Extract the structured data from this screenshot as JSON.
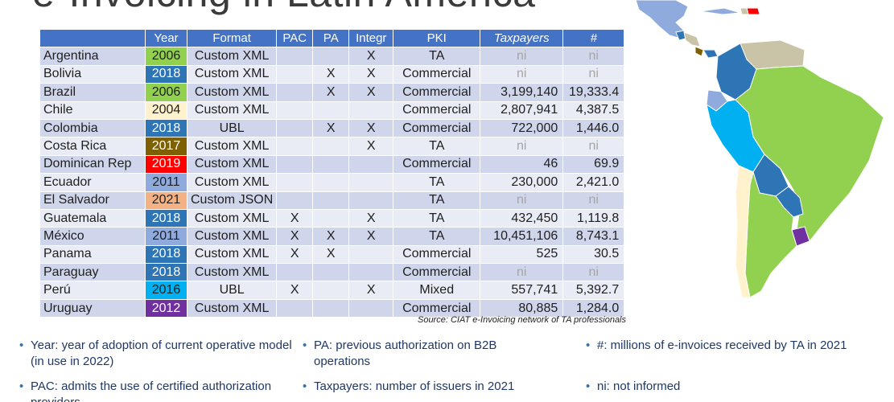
{
  "title": "e-Invoicing in Latin America",
  "table": {
    "headers": {
      "country": "",
      "year": "Year",
      "format": "Format",
      "pac": "PAC",
      "pa": "PA",
      "integr": "Integr",
      "pki": "PKI",
      "taxpayers": "Taxpayers",
      "count": "#"
    },
    "rows": [
      {
        "country": "Argentina",
        "year": "2006",
        "year_color": "#92d050",
        "year_text_color": "#1f1f1f",
        "format": "Custom XML",
        "pac": "",
        "pa": "",
        "integr": "X",
        "pki": "TA",
        "taxpayers": "ni",
        "count": "ni"
      },
      {
        "country": "Bolivia",
        "year": "2018",
        "year_color": "#2e75b6",
        "year_text_color": "#ffffff",
        "format": "Custom XML",
        "pac": "",
        "pa": "X",
        "integr": "X",
        "pki": "Commercial",
        "taxpayers": "ni",
        "count": "ni"
      },
      {
        "country": "Brazil",
        "year": "2006",
        "year_color": "#92d050",
        "year_text_color": "#1f1f1f",
        "format": "Custom XML",
        "pac": "",
        "pa": "X",
        "integr": "X",
        "pki": "Commercial",
        "taxpayers": "3,199,140",
        "count": "19,333.4"
      },
      {
        "country": "Chile",
        "year": "2004",
        "year_color": "#fff2cc",
        "year_text_color": "#1f1f1f",
        "format": "Custom XML",
        "pac": "",
        "pa": "",
        "integr": "",
        "pki": "Commercial",
        "taxpayers": "2,807,941",
        "count": "4,387.5"
      },
      {
        "country": "Colombia",
        "year": "2018",
        "year_color": "#2e75b6",
        "year_text_color": "#ffffff",
        "format": "UBL",
        "pac": "",
        "pa": "X",
        "integr": "X",
        "pki": "Commercial",
        "taxpayers": "722,000",
        "count": "1,446.0"
      },
      {
        "country": "Costa Rica",
        "year": "2017",
        "year_color": "#7f6000",
        "year_text_color": "#ffffff",
        "format": "Custom XML",
        "pac": "",
        "pa": "",
        "integr": "X",
        "pki": "TA",
        "taxpayers": "ni",
        "count": "ni"
      },
      {
        "country": "Dominican Rep",
        "year": "2019",
        "year_color": "#ff0000",
        "year_text_color": "#ffffff",
        "format": "Custom XML",
        "pac": "",
        "pa": "",
        "integr": "",
        "pki": "Commercial",
        "taxpayers": "46",
        "count": "69.9"
      },
      {
        "country": "Ecuador",
        "year": "2011",
        "year_color": "#8faadc",
        "year_text_color": "#1f1f1f",
        "format": "Custom XML",
        "pac": "",
        "pa": "",
        "integr": "",
        "pki": "TA",
        "taxpayers": "230,000",
        "count": "2,421.0"
      },
      {
        "country": "El Salvador",
        "year": "2021",
        "year_color": "#f4b183",
        "year_text_color": "#1f1f1f",
        "format": "Custom JSON",
        "pac": "",
        "pa": "",
        "integr": "",
        "pki": "TA",
        "taxpayers": "ni",
        "count": "ni"
      },
      {
        "country": "Guatemala",
        "year": "2018",
        "year_color": "#2e75b6",
        "year_text_color": "#ffffff",
        "format": "Custom XML",
        "pac": "X",
        "pa": "",
        "integr": "X",
        "pki": "TA",
        "taxpayers": "432,450",
        "count": "1,119.8"
      },
      {
        "country": "México",
        "year": "2011",
        "year_color": "#8faadc",
        "year_text_color": "#1f1f1f",
        "format": "Custom XML",
        "pac": "X",
        "pa": "X",
        "integr": "X",
        "pki": "TA",
        "taxpayers": "10,451,106",
        "count": "8,743.1"
      },
      {
        "country": "Panama",
        "year": "2018",
        "year_color": "#2e75b6",
        "year_text_color": "#ffffff",
        "format": "Custom XML",
        "pac": "X",
        "pa": "X",
        "integr": "",
        "pki": "Commercial",
        "taxpayers": "525",
        "count": "30.5"
      },
      {
        "country": "Paraguay",
        "year": "2018",
        "year_color": "#2e75b6",
        "year_text_color": "#ffffff",
        "format": "Custom XML",
        "pac": "",
        "pa": "",
        "integr": "",
        "pki": "Commercial",
        "taxpayers": "ni",
        "count": "ni"
      },
      {
        "country": "Perú",
        "year": "2016",
        "year_color": "#00b0f0",
        "year_text_color": "#1f1f1f",
        "format": "UBL",
        "pac": "X",
        "pa": "",
        "integr": "X",
        "pki": "Mixed",
        "taxpayers": "557,741",
        "count": "5,392.7"
      },
      {
        "country": "Uruguay",
        "year": "2012",
        "year_color": "#7030a0",
        "year_text_color": "#ffffff",
        "format": "Custom XML",
        "pac": "",
        "pa": "",
        "integr": "",
        "pki": "Commercial",
        "taxpayers": "80,885",
        "count": "1,284.0"
      }
    ]
  },
  "source": "Source: CIAT e-Invoicing network of TA professionals",
  "notes": {
    "year": "Year: year of adoption of current operative model (in use in 2022)",
    "pa": "PA: previous authorization on B2B operations",
    "count": "#: millions of e-invoices received by TA in 2021",
    "pac": "PAC: admits the use of certified authorization providers",
    "taxpayers": "Taxpayers: number of issuers in 2021",
    "ni": "ni: not informed"
  },
  "colors": {
    "header_blue": "#4472c4",
    "row_light": "#e9ebf5",
    "row_dark": "#cfd5ea",
    "bullet": "#2e75b6"
  }
}
